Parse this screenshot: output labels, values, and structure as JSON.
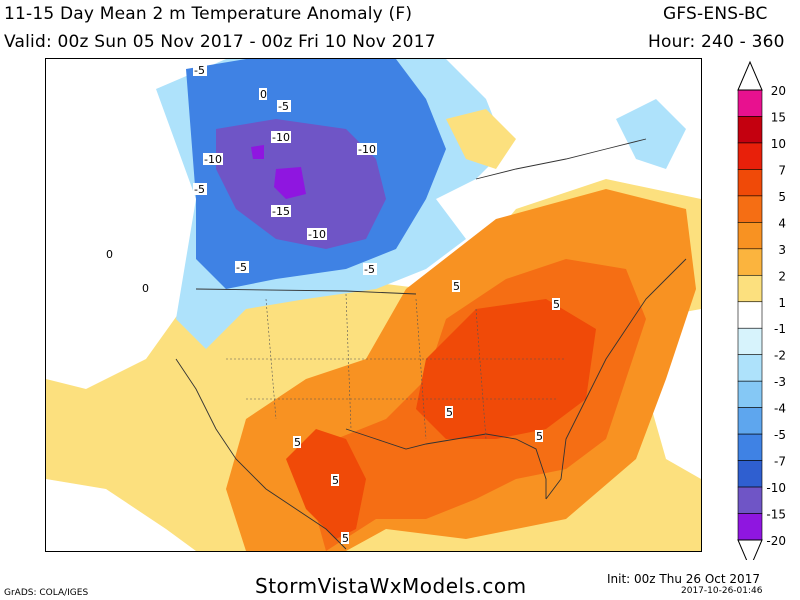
{
  "header": {
    "title": "11-15 Day Mean 2 m Temperature Anomaly (F)",
    "model": "GFS-ENS-BC",
    "valid": "Valid: 00z Sun 05 Nov 2017 - 00z Fri 10 Nov 2017",
    "hours": "Hour: 240 - 360"
  },
  "footer": {
    "site": "StormVistaWxModels.com",
    "credit": "GrADS: COLA/IGES",
    "init": "Init: 00z Thu 26 Oct 2017",
    "generated": "2017-10-26-01:46"
  },
  "legend": {
    "ticks": [
      "20",
      "15",
      "10",
      "7",
      "5",
      "4",
      "3",
      "2",
      "1",
      "-1",
      "-2",
      "-3",
      "-4",
      "-5",
      "-7",
      "-10",
      "-15",
      "-20"
    ],
    "colors": [
      "#e8118f",
      "#c4000f",
      "#e8200a",
      "#f04a08",
      "#f56e14",
      "#f89222",
      "#fbb43e",
      "#fce07e",
      "#ffffff",
      "#d7f3fc",
      "#aee2fb",
      "#85c8f5",
      "#5ea6ee",
      "#3f82e4",
      "#2f5fd0",
      "#6f55c6",
      "#8f16e0"
    ]
  },
  "contour_labels": [
    "-5",
    "0",
    "-5",
    "-10",
    "-10",
    "-10",
    "-5",
    "-15",
    "-10",
    "-5",
    "-5",
    "0",
    "5",
    "5",
    "5",
    "5",
    "5",
    "5",
    "5",
    "0"
  ],
  "colors": {
    "cold_deep": "#6f55c6",
    "cold_mid": "#3f82e4",
    "cold_light": "#aee2fb",
    "warm_light": "#fce07e",
    "warm_mid": "#f89222",
    "warm_deep": "#f04a08"
  }
}
